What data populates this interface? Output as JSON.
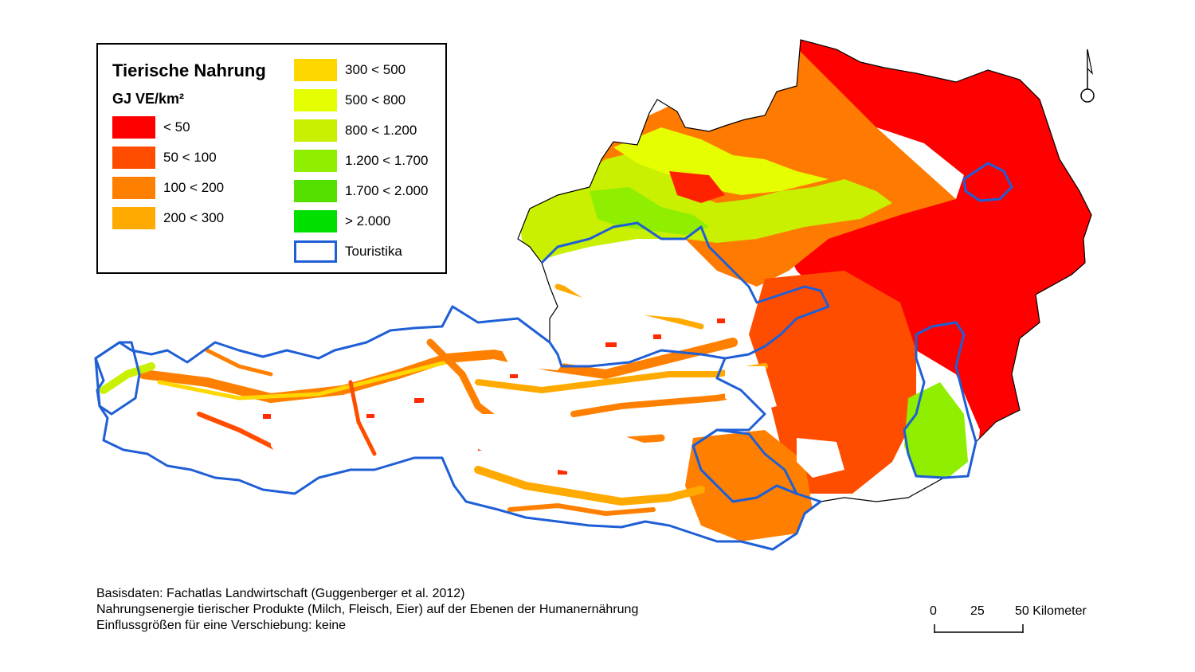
{
  "legend": {
    "title": "Tierische Nahrung",
    "unit": "GJ VE/km²",
    "classes": [
      {
        "label": "< 50",
        "color": "#ff0000"
      },
      {
        "label": "50 < 100",
        "color": "#ff4d00"
      },
      {
        "label": "100 < 200",
        "color": "#ff8000"
      },
      {
        "label": "200 < 300",
        "color": "#ffaa00"
      },
      {
        "label": "300 < 500",
        "color": "#ffd700"
      },
      {
        "label": "500 < 800",
        "color": "#e6ff00"
      },
      {
        "label": "800 < 1.200",
        "color": "#c8f000"
      },
      {
        "label": "1.200 < 1.700",
        "color": "#90ee00"
      },
      {
        "label": "1.700 < 2.000",
        "color": "#55e000"
      },
      {
        "label": "> 2.000",
        "color": "#00e000"
      }
    ],
    "boundary": {
      "label": "Touristika",
      "color": "#1f5fd6"
    }
  },
  "footer": {
    "line1": "Basisdaten: Fachatlas Landwirtschaft (Guggenberger et al. 2012)",
    "line2": "Nahrungsenergie  tierischer Produkte (Milch, Fleisch, Eier) auf der Ebenen der Humanernährung",
    "line3": "Einflussgrößen für eine Verschiebung: keine"
  },
  "scale": {
    "t0": "0",
    "t1": "25",
    "t2": "50 Kilometer"
  },
  "north_icon": "north-arrow-icon"
}
